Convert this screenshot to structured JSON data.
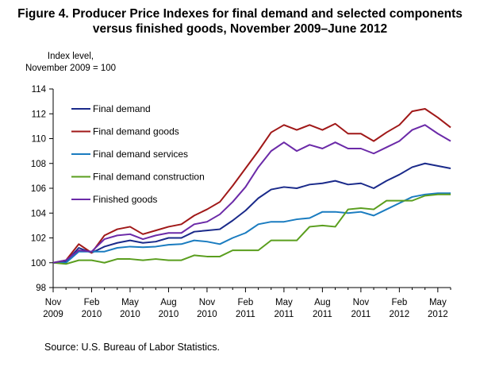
{
  "title_line1": "Figure 4. Producer Price Indexes for final demand and selected components",
  "title_line2": "versus finished  goods, November 2009–June 2012",
  "source": "Source: U.S. Bureau of Labor Statistics.",
  "chart_data": {
    "type": "line",
    "ylabel_line1": "Index level,",
    "ylabel_line2": "November 2009 = 100",
    "ylim": [
      98,
      114
    ],
    "yticks": [
      98,
      100,
      102,
      104,
      106,
      108,
      110,
      112,
      114
    ],
    "x_count": 32,
    "xticks": [
      {
        "index": 0,
        "line1": "Nov",
        "line2": "2009"
      },
      {
        "index": 3,
        "line1": "Feb",
        "line2": "2010"
      },
      {
        "index": 6,
        "line1": "May",
        "line2": "2010"
      },
      {
        "index": 9,
        "line1": "Aug",
        "line2": "2010"
      },
      {
        "index": 12,
        "line1": "Nov",
        "line2": "2010"
      },
      {
        "index": 15,
        "line1": "Feb",
        "line2": "2011"
      },
      {
        "index": 18,
        "line1": "May",
        "line2": "2011"
      },
      {
        "index": 21,
        "line1": "Aug",
        "line2": "2011"
      },
      {
        "index": 24,
        "line1": "Nov",
        "line2": "2011"
      },
      {
        "index": 27,
        "line1": "Feb",
        "line2": "2012"
      },
      {
        "index": 30,
        "line1": "May",
        "line2": "2012"
      }
    ],
    "legend_position": "top-left",
    "grid": false,
    "series": [
      {
        "name": "Final demand",
        "color": "#1a2a8a",
        "values": [
          100.0,
          100.1,
          101.2,
          100.8,
          101.3,
          101.6,
          101.8,
          101.6,
          101.7,
          102.0,
          102.0,
          102.5,
          102.6,
          102.7,
          103.4,
          104.2,
          105.2,
          105.9,
          106.1,
          106.0,
          106.3,
          106.4,
          106.6,
          106.3,
          106.4,
          106.0,
          106.6,
          107.1,
          107.7,
          108.0,
          107.8,
          107.6
        ]
      },
      {
        "name": "Final demand goods",
        "color": "#a01818",
        "values": [
          100.0,
          100.2,
          101.5,
          100.8,
          102.2,
          102.7,
          102.9,
          102.3,
          102.6,
          102.9,
          103.1,
          103.8,
          104.3,
          104.9,
          106.2,
          107.6,
          109.0,
          110.5,
          111.1,
          110.7,
          111.1,
          110.7,
          111.2,
          110.4,
          110.4,
          109.8,
          110.5,
          111.1,
          112.2,
          112.4,
          111.7,
          110.9
        ]
      },
      {
        "name": "Final demand services",
        "color": "#1a7cc0",
        "values": [
          100.0,
          100.0,
          100.9,
          100.9,
          100.9,
          101.2,
          101.3,
          101.25,
          101.3,
          101.45,
          101.5,
          101.8,
          101.7,
          101.5,
          102.0,
          102.4,
          103.1,
          103.3,
          103.3,
          103.5,
          103.6,
          104.1,
          104.1,
          104.0,
          104.1,
          103.8,
          104.3,
          104.8,
          105.3,
          105.5,
          105.6,
          105.6
        ]
      },
      {
        "name": "Final demand construction",
        "color": "#5a9e1e",
        "values": [
          100.0,
          99.9,
          100.2,
          100.2,
          100.0,
          100.3,
          100.3,
          100.2,
          100.3,
          100.2,
          100.2,
          100.6,
          100.5,
          100.5,
          101.0,
          101.0,
          101.0,
          101.8,
          101.8,
          101.8,
          102.9,
          103.0,
          102.9,
          104.3,
          104.4,
          104.3,
          105.0,
          105.0,
          105.0,
          105.4,
          105.5,
          105.5
        ]
      },
      {
        "name": "Finished goods",
        "color": "#6b2aa8",
        "values": [
          100.0,
          100.2,
          101.0,
          100.9,
          101.9,
          102.2,
          102.3,
          101.9,
          102.2,
          102.4,
          102.4,
          103.1,
          103.3,
          103.9,
          104.9,
          106.1,
          107.7,
          109.0,
          109.7,
          109.0,
          109.5,
          109.2,
          109.7,
          109.2,
          109.2,
          108.8,
          109.3,
          109.8,
          110.7,
          111.1,
          110.4,
          109.8
        ]
      }
    ]
  }
}
